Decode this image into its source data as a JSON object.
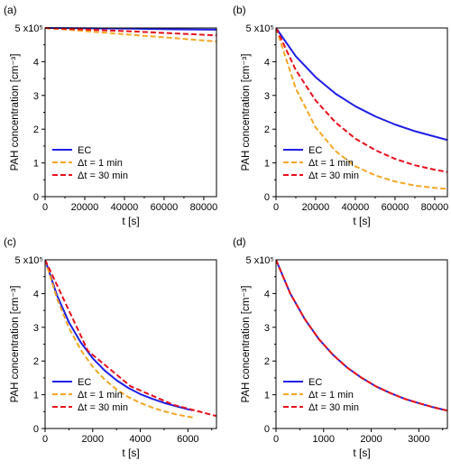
{
  "colors": {
    "ec": "#1e1ee6",
    "dt1": "#f5a623",
    "dt30": "#e8101c",
    "axis": "#000000"
  },
  "chart_data": [
    {
      "type": "line",
      "panel_label": "(a)",
      "xlabel": "t [s]",
      "ylabel": "PAH concentration [cm⁻³]",
      "y_mult_label": "5 x10⁵",
      "xlim": [
        0,
        86400
      ],
      "ylim": [
        0,
        5
      ],
      "x_ticks": [
        0,
        20000,
        40000,
        60000,
        80000
      ],
      "y_ticks": [
        0,
        1,
        2,
        3,
        4
      ],
      "legend": {
        "placement": "bottom-left",
        "labels": [
          "EC",
          "Δt = 1 min",
          "Δt = 30 min"
        ]
      },
      "series": [
        {
          "name": "EC",
          "style": "solid",
          "x": [
            0,
            21600,
            43200,
            64800,
            86400
          ],
          "values": [
            5.0,
            4.99,
            4.98,
            4.96,
            4.95
          ]
        },
        {
          "name": "Δt = 1 min",
          "style": "dashed",
          "x": [
            0,
            21600,
            43200,
            64800,
            86400
          ],
          "values": [
            5.0,
            4.9,
            4.8,
            4.7,
            4.6
          ]
        },
        {
          "name": "Δt = 30 min",
          "style": "dashed",
          "x": [
            0,
            21600,
            43200,
            64800,
            86400
          ],
          "values": [
            5.0,
            4.95,
            4.9,
            4.84,
            4.78
          ]
        }
      ]
    },
    {
      "type": "line",
      "panel_label": "(b)",
      "xlabel": "t [s]",
      "ylabel": "PAH concentration [cm⁻³]",
      "y_mult_label": "5 x10⁵",
      "xlim": [
        0,
        86400
      ],
      "ylim": [
        0,
        5
      ],
      "x_ticks": [
        0,
        20000,
        40000,
        60000,
        80000
      ],
      "y_ticks": [
        0,
        1,
        2,
        3,
        4
      ],
      "legend": {
        "placement": "bottom-left",
        "labels": [
          "EC",
          "Δt = 1 min",
          "Δt = 30 min"
        ]
      },
      "series": [
        {
          "name": "EC",
          "style": "solid",
          "x": [
            0,
            10000,
            20000,
            30000,
            40000,
            50000,
            60000,
            70000,
            80000,
            86400
          ],
          "values": [
            5.0,
            4.16,
            3.54,
            3.05,
            2.68,
            2.38,
            2.14,
            1.94,
            1.78,
            1.68
          ]
        },
        {
          "name": "Δt = 1 min",
          "style": "dashed",
          "x": [
            0,
            10000,
            20000,
            30000,
            40000,
            50000,
            60000,
            70000,
            80000,
            86400
          ],
          "values": [
            5.0,
            3.2,
            2.05,
            1.35,
            0.9,
            0.63,
            0.45,
            0.33,
            0.26,
            0.23
          ]
        },
        {
          "name": "Δt = 30 min",
          "style": "dashed",
          "x": [
            0,
            10000,
            20000,
            30000,
            40000,
            50000,
            60000,
            70000,
            80000,
            86400
          ],
          "values": [
            5.0,
            3.75,
            2.85,
            2.2,
            1.72,
            1.38,
            1.12,
            0.93,
            0.8,
            0.73
          ]
        }
      ]
    },
    {
      "type": "line",
      "panel_label": "(c)",
      "xlabel": "t [s]",
      "ylabel": "PAH concentration [cm⁻³]",
      "y_mult_label": "5 x10⁵",
      "xlim": [
        0,
        7200
      ],
      "ylim": [
        0,
        5
      ],
      "x_ticks": [
        0,
        2000,
        4000,
        6000
      ],
      "y_ticks": [
        0,
        1,
        2,
        3,
        4
      ],
      "legend": {
        "placement": "bottom-left",
        "labels": [
          "EC",
          "Δt = 1 min",
          "Δt = 30 min"
        ]
      },
      "series": [
        {
          "name": "EC",
          "style": "solid",
          "x": [
            0,
            500,
            1000,
            1500,
            2000,
            2500,
            3000,
            3500,
            4000,
            4500,
            5000,
            5500,
            6000,
            6200
          ],
          "values": [
            5.0,
            3.95,
            3.15,
            2.55,
            2.08,
            1.72,
            1.43,
            1.2,
            1.02,
            0.88,
            0.76,
            0.66,
            0.57,
            0.54
          ]
        },
        {
          "name": "Δt = 1 min",
          "style": "dashed",
          "x": [
            0,
            500,
            1000,
            1500,
            2000,
            2500,
            3000,
            3500,
            4000,
            4500,
            5000,
            5500,
            6000,
            6200
          ],
          "values": [
            5.0,
            3.85,
            2.98,
            2.33,
            1.83,
            1.45,
            1.16,
            0.93,
            0.76,
            0.62,
            0.51,
            0.42,
            0.35,
            0.33
          ]
        },
        {
          "name": "Δt = 30 min",
          "style": "dashed",
          "x": [
            0,
            1800,
            3600,
            5400,
            7200
          ],
          "values": [
            5.0,
            2.3,
            1.25,
            0.7,
            0.37
          ]
        }
      ]
    },
    {
      "type": "line",
      "panel_label": "(d)",
      "xlabel": "t [s]",
      "ylabel": "PAH concentration [cm⁻³]",
      "y_mult_label": "5 x10⁵",
      "xlim": [
        0,
        3600
      ],
      "ylim": [
        0,
        5
      ],
      "x_ticks": [
        0,
        1000,
        2000,
        3000
      ],
      "y_ticks": [
        0,
        1,
        2,
        3,
        4
      ],
      "legend": {
        "placement": "bottom-left",
        "labels": [
          "EC",
          "Δt = 1 min",
          "Δt = 30 min"
        ]
      },
      "series": [
        {
          "name": "EC",
          "style": "solid",
          "x": [
            0,
            300,
            600,
            900,
            1200,
            1500,
            1800,
            2100,
            2400,
            2700,
            3000,
            3300,
            3600
          ],
          "values": [
            5.0,
            4.0,
            3.25,
            2.65,
            2.18,
            1.8,
            1.5,
            1.25,
            1.05,
            0.88,
            0.75,
            0.63,
            0.53
          ]
        },
        {
          "name": "Δt = 1 min",
          "style": "dashed",
          "x": [
            0,
            300,
            600,
            900,
            1200,
            1500,
            1800,
            2100,
            2400,
            2700,
            3000,
            3300,
            3600
          ],
          "values": [
            5.0,
            4.0,
            3.25,
            2.65,
            2.18,
            1.8,
            1.5,
            1.25,
            1.05,
            0.88,
            0.75,
            0.63,
            0.53
          ]
        },
        {
          "name": "Δt = 30 min",
          "style": "dashed",
          "x": [
            0,
            300,
            600,
            900,
            1200,
            1500,
            1800,
            2100,
            2400,
            2700,
            3000,
            3300,
            3600
          ],
          "values": [
            5.0,
            4.0,
            3.25,
            2.65,
            2.18,
            1.8,
            1.5,
            1.25,
            1.05,
            0.88,
            0.75,
            0.63,
            0.53
          ]
        }
      ]
    }
  ]
}
